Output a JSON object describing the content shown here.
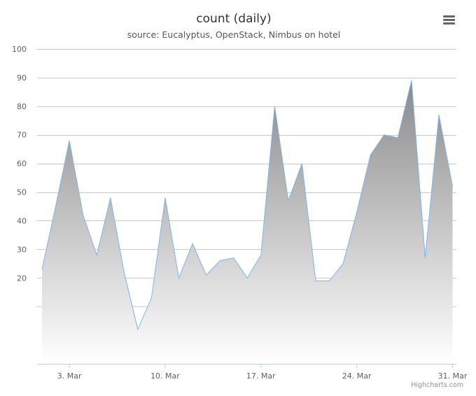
{
  "chart_data": {
    "type": "area",
    "title": "count (daily)",
    "subtitle": "source: Eucalyptus, OpenStack, Nimbus on hotel",
    "x_dates": [
      "Mar 1",
      "Mar 2",
      "Mar 3",
      "Mar 4",
      "Mar 5",
      "Mar 6",
      "Mar 7",
      "Mar 8",
      "Mar 9",
      "Mar 10",
      "Mar 11",
      "Mar 12",
      "Mar 13",
      "Mar 14",
      "Mar 15",
      "Mar 16",
      "Mar 17",
      "Mar 18",
      "Mar 19",
      "Mar 20",
      "Mar 21",
      "Mar 22",
      "Mar 23",
      "Mar 24",
      "Mar 25",
      "Mar 26",
      "Mar 27",
      "Mar 28",
      "Mar 29",
      "Mar 30",
      "Mar 31"
    ],
    "series": [
      {
        "values": [
          23,
          45,
          68,
          42,
          28,
          48,
          22,
          2,
          13,
          48,
          20,
          32,
          21,
          26,
          27,
          20,
          28,
          80,
          47,
          60,
          19,
          19,
          25,
          43,
          63,
          70,
          69,
          89,
          27,
          77,
          52
        ]
      }
    ],
    "ylim": [
      -10,
      100
    ],
    "y_ticks": [
      20,
      30,
      40,
      50,
      60,
      70,
      80,
      90,
      100
    ],
    "y_gridlines": [
      10,
      20,
      30,
      40,
      50,
      60,
      70,
      80,
      90,
      100
    ],
    "x_ticks": [
      {
        "label": "3. Mar",
        "day": 3
      },
      {
        "label": "10. Mar",
        "day": 10
      },
      {
        "label": "17. Mar",
        "day": 17
      },
      {
        "label": "24. Mar",
        "day": 24
      },
      {
        "label": "31. Mar",
        "day": 31
      }
    ],
    "grid": true,
    "legend": false,
    "colors": {
      "line": "#7cb5ec",
      "fill_top": "#8a8a8a",
      "fill_bottom": "#ffffff"
    }
  },
  "ui": {
    "menu_icon": "hamburger-menu-icon",
    "credits": "Highcharts.com"
  }
}
